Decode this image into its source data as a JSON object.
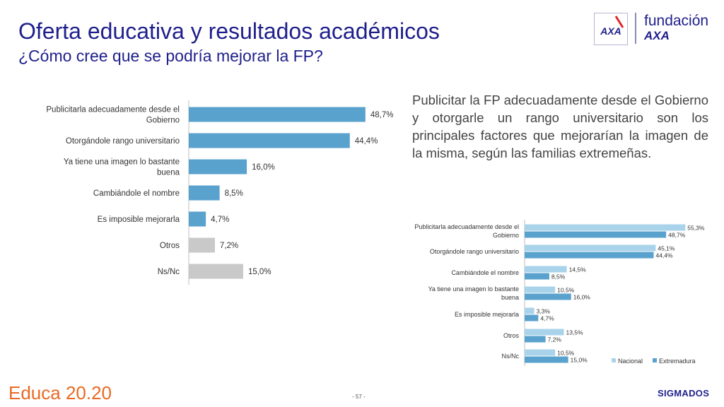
{
  "header": {
    "title": "Oferta educativa y resultados académicos",
    "subtitle": "¿Cómo cree que se podría mejorar la FP?"
  },
  "logo": {
    "brand_line1": "fundación",
    "brand_line2": "AXA",
    "mark_text": "AXA"
  },
  "summary_text": "Publicitar la FP adecuadamente desde el Gobierno y otorgarle un rango universitario son los principales factores que mejorarían la imagen de la misma, según las familias extremeñas.",
  "footer": {
    "left_brand": "Educa 20.20",
    "page_number": "- 57 -",
    "right_brand": "SIGMADOS"
  },
  "colors": {
    "title": "#1f1f8c",
    "bar_blue": "#5aa2ce",
    "bar_gray": "#c9c9c9",
    "nacional": "#a9d3ea",
    "extremadura": "#5aa2ce"
  },
  "chart_data": [
    {
      "type": "bar",
      "orientation": "horizontal",
      "categories": [
        "Publicitarla adecuadamente desde el Gobierno",
        "Otorgándole rango universitario",
        "Ya tiene una imagen lo bastante buena",
        "Cambiándole el nombre",
        "Es imposible mejorarla",
        "Otros",
        "Ns/Nc"
      ],
      "values": [
        48.7,
        44.4,
        16.0,
        8.5,
        4.7,
        7.2,
        15.0
      ],
      "value_labels": [
        "48,7%",
        "44,4%",
        "16,0%",
        "8,5%",
        "4,7%",
        "7,2%",
        "15,0%"
      ],
      "bar_colors": [
        "#5aa2ce",
        "#5aa2ce",
        "#5aa2ce",
        "#5aa2ce",
        "#5aa2ce",
        "#c9c9c9",
        "#c9c9c9"
      ],
      "xlim": [
        0,
        60
      ]
    },
    {
      "type": "bar",
      "orientation": "horizontal",
      "categories": [
        "Publicitarla adecuadamente desde el Gobierno",
        "Otorgándole rango universitario",
        "Cambiándole el nombre",
        "Ya tiene una imagen lo bastante buena",
        "Es imposible mejorarla",
        "Otros",
        "Ns/Nc"
      ],
      "series": [
        {
          "name": "Nacional",
          "values": [
            55.3,
            45.1,
            14.5,
            10.5,
            3.3,
            13.5,
            10.5
          ],
          "labels": [
            "55,3%",
            "45,1%",
            "14,5%",
            "10,5%",
            "3,3%",
            "13,5%",
            "10,5%"
          ]
        },
        {
          "name": "Extremadura",
          "values": [
            48.7,
            44.4,
            8.5,
            16.0,
            4.7,
            7.2,
            15.0
          ],
          "labels": [
            "48,7%",
            "44,4%",
            "8,5%",
            "16,0%",
            "4,7%",
            "7,2%",
            "15,0%"
          ]
        }
      ],
      "legend": "bottom-right",
      "xlim": [
        0,
        60
      ]
    }
  ]
}
